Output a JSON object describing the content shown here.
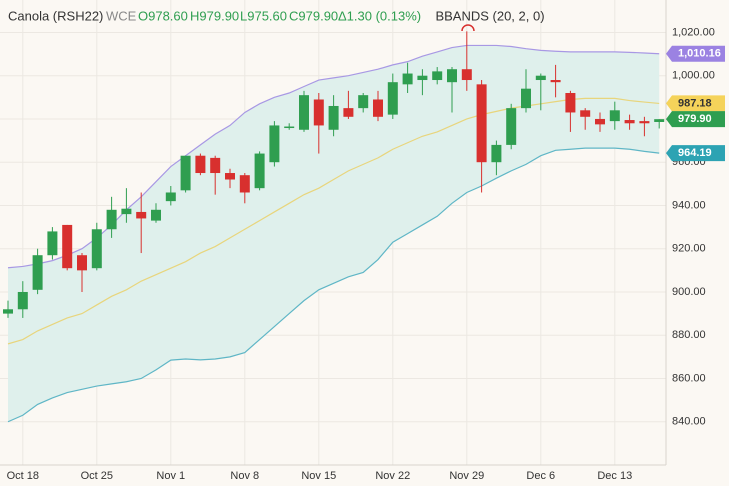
{
  "chart_data": {
    "type": "candlestick",
    "header": {
      "symbol": "Canola (RSH22)",
      "exchange": "WCE",
      "open": "O978.60",
      "high": "H979.90",
      "low": "L975.60",
      "close": "C979.90",
      "change": "Δ1.30 (0.13%)"
    },
    "indicator": "BBANDS (20, 2, 0)",
    "categories": [
      null,
      "Oct 18",
      null,
      null,
      null,
      null,
      "Oct 25",
      null,
      null,
      null,
      null,
      "Nov 1",
      null,
      null,
      null,
      null,
      "Nov 8",
      null,
      null,
      null,
      null,
      "Nov 15",
      null,
      null,
      null,
      null,
      "Nov 22",
      null,
      null,
      null,
      null,
      "Nov 29",
      null,
      null,
      null,
      null,
      "Dec 6",
      null,
      null,
      null,
      null,
      "Dec 13",
      null,
      null,
      null
    ],
    "open": [
      890,
      892,
      901,
      917,
      931,
      917,
      911,
      929,
      936,
      937,
      933,
      942,
      947,
      963,
      962,
      955,
      954,
      948,
      960,
      976,
      975,
      989,
      975,
      985,
      985,
      989,
      982,
      996,
      998,
      998,
      997,
      1003,
      996,
      960,
      968,
      985,
      998,
      998,
      992,
      984,
      980,
      979,
      979.5,
      979,
      978.6
    ],
    "high": [
      896,
      905,
      920,
      930,
      931,
      918,
      932,
      944,
      948,
      946,
      941,
      949,
      963,
      964,
      963,
      957,
      955,
      965,
      979,
      978,
      993,
      992,
      991,
      993,
      992,
      993,
      1001,
      1006,
      1003,
      1004,
      1004,
      1020.5,
      998,
      970,
      987,
      1003,
      1001,
      1005,
      993,
      985,
      983,
      988,
      982,
      981,
      979.9
    ],
    "low": [
      888,
      888,
      899,
      915,
      910,
      900,
      910,
      925,
      932,
      918,
      932,
      940,
      946,
      954,
      945,
      948,
      941,
      947,
      958,
      975,
      974,
      964,
      972,
      980,
      983,
      979,
      980,
      992,
      991,
      996,
      983,
      993,
      946,
      954,
      966,
      983,
      984,
      990,
      974,
      975,
      974,
      975,
      975,
      972,
      975.6
    ],
    "close": [
      892,
      900,
      917,
      928,
      911,
      910,
      929,
      938,
      938.5,
      934,
      938,
      946,
      963,
      955,
      955,
      952,
      946,
      964,
      977,
      976.5,
      991,
      977,
      986,
      981,
      991,
      981,
      997,
      1001,
      1000,
      1002,
      1003,
      998,
      960,
      968,
      985,
      994,
      1000,
      997,
      983,
      981,
      977.5,
      984,
      978,
      978,
      979.9
    ],
    "up_color": "#2f9e50",
    "down_color": "#d8302e",
    "band_fill": "#dff0ec",
    "bands": [
      {
        "color": "#a898e4",
        "tag_color": "#9b82e2",
        "tag_text_color": "#ffffff",
        "last_label": "1,010.16",
        "values": [
          911.2,
          911.8,
          913,
          914.5,
          917,
          920,
          925,
          931,
          938,
          944,
          951,
          958,
          963,
          968,
          973,
          977,
          983,
          987,
          990,
          992,
          995,
          998,
          999,
          1000,
          1001.5,
          1003,
          1005,
          1006.5,
          1009,
          1011,
          1013,
          1014,
          1014,
          1014,
          1013.5,
          1012.5,
          1011.7,
          1011.3,
          1011,
          1011,
          1011,
          1011,
          1010.8,
          1010.5,
          1010.16
        ]
      },
      {
        "color": "#e8d57c",
        "tag_color": "#f5d35a",
        "tag_text_color": "#333333",
        "last_label": "987.18",
        "values": [
          876,
          878,
          882,
          885,
          888,
          890,
          894,
          898,
          901,
          905,
          908,
          911,
          914,
          918,
          921,
          925,
          929,
          933,
          937,
          941,
          945,
          948,
          952,
          956,
          959,
          962,
          966,
          969,
          972,
          974,
          977,
          980,
          982,
          983.5,
          985,
          986,
          987,
          988,
          989,
          989.5,
          989.5,
          989.5,
          988.5,
          987.8,
          987.18
        ]
      },
      {
        "color": "#5fb6c6",
        "tag_color": "#2da3b3",
        "tag_text_color": "#ffffff",
        "last_label": "964.19",
        "values": [
          840,
          843,
          848,
          851,
          853.5,
          855,
          856.5,
          857.5,
          858.5,
          860,
          864,
          868.5,
          869,
          868.6,
          869,
          870,
          872,
          878,
          884,
          890,
          896,
          901,
          904,
          907,
          909,
          915,
          923,
          927,
          931,
          935,
          941,
          946,
          949,
          952.6,
          956,
          959,
          963,
          965.5,
          966,
          966.5,
          966.5,
          966.5,
          966,
          965,
          964.19
        ]
      }
    ],
    "last_close_label": "979.90",
    "ylim": [
      820,
      1035
    ],
    "yticks": [
      {
        "value": 840,
        "label": "840.00"
      },
      {
        "value": 860,
        "label": "860.00"
      },
      {
        "value": 880,
        "label": "880.00"
      },
      {
        "value": 900,
        "label": "900.00"
      },
      {
        "value": 920,
        "label": "920.00"
      },
      {
        "value": 940,
        "label": "940.00"
      },
      {
        "value": 960,
        "label": "960.00"
      },
      {
        "value": 980,
        "label": "980.00"
      },
      {
        "value": 1000,
        "label": "1,000.00"
      },
      {
        "value": 1020,
        "label": "1,020.00"
      }
    ],
    "grid": true
  }
}
